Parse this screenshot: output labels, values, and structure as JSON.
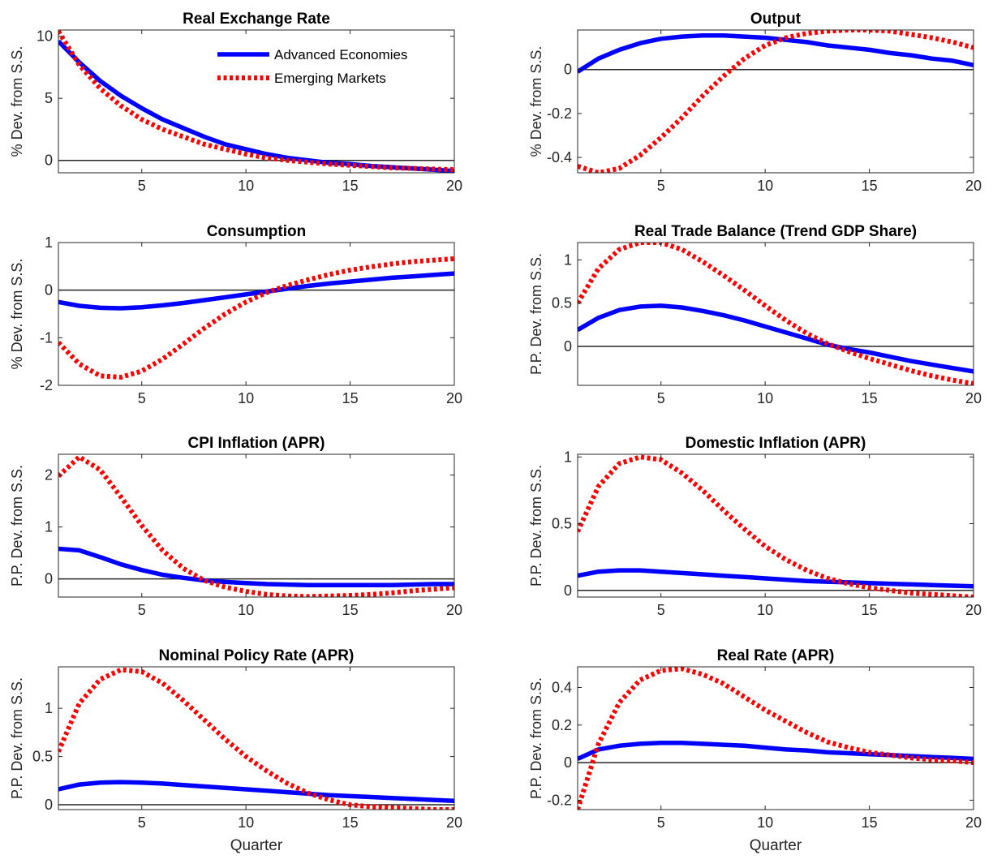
{
  "colors": {
    "advanced": "#0000ff",
    "emerging": "#ff0000",
    "zero_line": "#262626",
    "axes": "#262626"
  },
  "legend": {
    "placement": "top-right of first panel",
    "entries": [
      {
        "label": "Advanced Economies",
        "color": "#0000ff",
        "style": "solid"
      },
      {
        "label": "Emerging Markets",
        "color": "#ff0000",
        "style": "dotted"
      }
    ]
  },
  "chart_data": [
    {
      "type": "line",
      "title": "Real Exchange Rate",
      "ylabel": "% Dev. from S.S.",
      "xlabel": "",
      "xlim": [
        1,
        20
      ],
      "ylim": [
        -1,
        10.5
      ],
      "xticks": [
        5,
        10,
        15,
        20
      ],
      "yticks": [
        0,
        5,
        10
      ],
      "xtick_labels": [
        "5",
        "10",
        "15",
        "20"
      ],
      "ytick_labels": [
        "0",
        "5",
        "10"
      ],
      "grid": false,
      "zero_line": true,
      "x": [
        1,
        2,
        3,
        4,
        5,
        6,
        7,
        8,
        9,
        10,
        11,
        12,
        13,
        14,
        15,
        16,
        17,
        18,
        19,
        20
      ],
      "series": [
        {
          "name": "Advanced Economies",
          "values": [
            9.6,
            7.9,
            6.4,
            5.2,
            4.2,
            3.3,
            2.6,
            1.9,
            1.3,
            0.9,
            0.5,
            0.2,
            0.0,
            -0.2,
            -0.3,
            -0.45,
            -0.55,
            -0.65,
            -0.75,
            -0.85
          ]
        },
        {
          "name": "Emerging Markets",
          "values": [
            10.4,
            7.7,
            5.8,
            4.4,
            3.3,
            2.5,
            1.9,
            1.3,
            0.9,
            0.5,
            0.2,
            0.0,
            -0.15,
            -0.3,
            -0.4,
            -0.5,
            -0.6,
            -0.65,
            -0.7,
            -0.75
          ]
        }
      ]
    },
    {
      "type": "line",
      "title": "Output",
      "ylabel": "% Dev. from S.S.",
      "xlabel": "",
      "xlim": [
        1,
        20
      ],
      "ylim": [
        -0.47,
        0.18
      ],
      "xticks": [
        5,
        10,
        15,
        20
      ],
      "yticks": [
        -0.4,
        -0.2,
        0
      ],
      "xtick_labels": [
        "5",
        "10",
        "15",
        "20"
      ],
      "ytick_labels": [
        "-0.4",
        "-0.2",
        "0"
      ],
      "grid": false,
      "zero_line": true,
      "x": [
        1,
        2,
        3,
        4,
        5,
        6,
        7,
        8,
        9,
        10,
        11,
        12,
        13,
        14,
        15,
        16,
        17,
        18,
        19,
        20
      ],
      "series": [
        {
          "name": "Advanced Economies",
          "values": [
            -0.01,
            0.05,
            0.09,
            0.12,
            0.14,
            0.15,
            0.155,
            0.155,
            0.15,
            0.145,
            0.135,
            0.125,
            0.11,
            0.1,
            0.09,
            0.075,
            0.065,
            0.05,
            0.04,
            0.02
          ]
        },
        {
          "name": "Emerging Markets",
          "values": [
            -0.44,
            -0.47,
            -0.45,
            -0.39,
            -0.31,
            -0.22,
            -0.12,
            -0.03,
            0.05,
            0.11,
            0.145,
            0.165,
            0.175,
            0.18,
            0.18,
            0.175,
            0.16,
            0.145,
            0.125,
            0.1
          ]
        }
      ]
    },
    {
      "type": "line",
      "title": "Consumption",
      "ylabel": "% Dev. from S.S.",
      "xlabel": "",
      "xlim": [
        1,
        20
      ],
      "ylim": [
        -2,
        1
      ],
      "xticks": [
        5,
        10,
        15,
        20
      ],
      "yticks": [
        -2,
        -1,
        0,
        1
      ],
      "xtick_labels": [
        "5",
        "10",
        "15",
        "20"
      ],
      "ytick_labels": [
        "-2",
        "-1",
        "0",
        "1"
      ],
      "grid": false,
      "zero_line": true,
      "x": [
        1,
        2,
        3,
        4,
        5,
        6,
        7,
        8,
        9,
        10,
        11,
        12,
        13,
        14,
        15,
        16,
        17,
        18,
        19,
        20
      ],
      "series": [
        {
          "name": "Advanced Economies",
          "values": [
            -0.25,
            -0.33,
            -0.37,
            -0.38,
            -0.36,
            -0.32,
            -0.27,
            -0.21,
            -0.15,
            -0.09,
            -0.03,
            0.03,
            0.09,
            0.14,
            0.18,
            0.22,
            0.26,
            0.29,
            0.32,
            0.35
          ]
        },
        {
          "name": "Emerging Markets",
          "values": [
            -1.1,
            -1.55,
            -1.8,
            -1.83,
            -1.7,
            -1.45,
            -1.13,
            -0.8,
            -0.5,
            -0.25,
            -0.05,
            0.1,
            0.22,
            0.33,
            0.42,
            0.49,
            0.55,
            0.6,
            0.63,
            0.66
          ]
        }
      ]
    },
    {
      "type": "line",
      "title": "Real Trade Balance (Trend GDP Share)",
      "ylabel": "P.P. Dev. from S.S.",
      "xlabel": "",
      "xlim": [
        1,
        20
      ],
      "ylim": [
        -0.45,
        1.2
      ],
      "xticks": [
        5,
        10,
        15,
        20
      ],
      "yticks": [
        0,
        0.5,
        1
      ],
      "xtick_labels": [
        "5",
        "10",
        "15",
        "20"
      ],
      "ytick_labels": [
        "0",
        "0.5",
        "1"
      ],
      "grid": false,
      "zero_line": true,
      "x": [
        1,
        2,
        3,
        4,
        5,
        6,
        7,
        8,
        9,
        10,
        11,
        12,
        13,
        14,
        15,
        16,
        17,
        18,
        19,
        20
      ],
      "series": [
        {
          "name": "Advanced Economies",
          "values": [
            0.19,
            0.33,
            0.42,
            0.46,
            0.47,
            0.45,
            0.41,
            0.36,
            0.3,
            0.23,
            0.16,
            0.09,
            0.02,
            -0.03,
            -0.07,
            -0.12,
            -0.17,
            -0.21,
            -0.25,
            -0.29
          ]
        },
        {
          "name": "Emerging Markets",
          "values": [
            0.5,
            0.9,
            1.12,
            1.2,
            1.2,
            1.12,
            0.98,
            0.82,
            0.65,
            0.47,
            0.3,
            0.15,
            0.03,
            -0.06,
            -0.14,
            -0.21,
            -0.28,
            -0.34,
            -0.39,
            -0.43
          ]
        }
      ]
    },
    {
      "type": "line",
      "title": "CPI Inflation (APR)",
      "ylabel": "P.P. Dev. from S.S.",
      "xlabel": "",
      "xlim": [
        1,
        20
      ],
      "ylim": [
        -0.35,
        2.4
      ],
      "xticks": [
        5,
        10,
        15,
        20
      ],
      "yticks": [
        0,
        1,
        2
      ],
      "xtick_labels": [
        "5",
        "10",
        "15",
        "20"
      ],
      "ytick_labels": [
        "0",
        "1",
        "2"
      ],
      "grid": false,
      "zero_line": true,
      "x": [
        1,
        2,
        3,
        4,
        5,
        6,
        7,
        8,
        9,
        10,
        11,
        12,
        13,
        14,
        15,
        16,
        17,
        18,
        19,
        20
      ],
      "series": [
        {
          "name": "Advanced Economies",
          "values": [
            0.58,
            0.55,
            0.42,
            0.28,
            0.17,
            0.08,
            0.02,
            -0.03,
            -0.06,
            -0.08,
            -0.1,
            -0.11,
            -0.12,
            -0.12,
            -0.12,
            -0.12,
            -0.12,
            -0.11,
            -0.1,
            -0.1
          ]
        },
        {
          "name": "Emerging Markets",
          "values": [
            1.98,
            2.35,
            2.1,
            1.58,
            1.03,
            0.55,
            0.2,
            -0.03,
            -0.16,
            -0.24,
            -0.3,
            -0.33,
            -0.34,
            -0.33,
            -0.32,
            -0.3,
            -0.27,
            -0.23,
            -0.2,
            -0.17
          ]
        }
      ]
    },
    {
      "type": "line",
      "title": "Domestic Inflation (APR)",
      "ylabel": "P.P. Dev. from S.S.",
      "xlabel": "",
      "xlim": [
        1,
        20
      ],
      "ylim": [
        -0.05,
        1.02
      ],
      "xticks": [
        5,
        10,
        15,
        20
      ],
      "yticks": [
        0,
        0.5,
        1
      ],
      "xtick_labels": [
        "5",
        "10",
        "15",
        "20"
      ],
      "ytick_labels": [
        "0",
        "0.5",
        "1"
      ],
      "grid": false,
      "zero_line": true,
      "x": [
        1,
        2,
        3,
        4,
        5,
        6,
        7,
        8,
        9,
        10,
        11,
        12,
        13,
        14,
        15,
        16,
        17,
        18,
        19,
        20
      ],
      "series": [
        {
          "name": "Advanced Economies",
          "values": [
            0.11,
            0.14,
            0.15,
            0.15,
            0.14,
            0.13,
            0.12,
            0.11,
            0.1,
            0.09,
            0.08,
            0.07,
            0.065,
            0.06,
            0.055,
            0.05,
            0.045,
            0.04,
            0.035,
            0.03
          ]
        },
        {
          "name": "Emerging Markets",
          "values": [
            0.44,
            0.78,
            0.95,
            1.0,
            0.98,
            0.88,
            0.75,
            0.6,
            0.46,
            0.33,
            0.23,
            0.15,
            0.09,
            0.05,
            0.02,
            0.0,
            -0.02,
            -0.03,
            -0.04,
            -0.05
          ]
        }
      ]
    },
    {
      "type": "line",
      "title": "Nominal Policy Rate (APR)",
      "ylabel": "P.P. Dev. from S.S.",
      "xlabel": "Quarter",
      "xlim": [
        1,
        20
      ],
      "ylim": [
        -0.05,
        1.43
      ],
      "xticks": [
        5,
        10,
        15,
        20
      ],
      "yticks": [
        0,
        0.5,
        1
      ],
      "xtick_labels": [
        "5",
        "10",
        "15",
        "20"
      ],
      "ytick_labels": [
        "0",
        "0.5",
        "1"
      ],
      "grid": false,
      "zero_line": true,
      "x": [
        1,
        2,
        3,
        4,
        5,
        6,
        7,
        8,
        9,
        10,
        11,
        12,
        13,
        14,
        15,
        16,
        17,
        18,
        19,
        20
      ],
      "series": [
        {
          "name": "Advanced Economies",
          "values": [
            0.16,
            0.21,
            0.23,
            0.235,
            0.23,
            0.22,
            0.205,
            0.19,
            0.175,
            0.16,
            0.145,
            0.13,
            0.115,
            0.1,
            0.09,
            0.08,
            0.07,
            0.06,
            0.05,
            0.04
          ]
        },
        {
          "name": "Emerging Markets",
          "values": [
            0.55,
            1.05,
            1.3,
            1.4,
            1.38,
            1.26,
            1.08,
            0.88,
            0.68,
            0.5,
            0.35,
            0.22,
            0.12,
            0.05,
            0.0,
            -0.02,
            -0.03,
            -0.04,
            -0.05,
            -0.05
          ]
        }
      ]
    },
    {
      "type": "line",
      "title": "Real Rate (APR)",
      "ylabel": "P.P. Dev. from S.S.",
      "xlabel": "Quarter",
      "xlim": [
        1,
        20
      ],
      "ylim": [
        -0.25,
        0.51
      ],
      "xticks": [
        5,
        10,
        15,
        20
      ],
      "yticks": [
        -0.2,
        0,
        0.2,
        0.4
      ],
      "xtick_labels": [
        "5",
        "10",
        "15",
        "20"
      ],
      "ytick_labels": [
        "-0.2",
        "0",
        "0.2",
        "0.4"
      ],
      "grid": false,
      "zero_line": true,
      "x": [
        1,
        2,
        3,
        4,
        5,
        6,
        7,
        8,
        9,
        10,
        11,
        12,
        13,
        14,
        15,
        16,
        17,
        18,
        19,
        20
      ],
      "series": [
        {
          "name": "Advanced Economies",
          "values": [
            0.02,
            0.07,
            0.09,
            0.1,
            0.105,
            0.105,
            0.1,
            0.095,
            0.09,
            0.08,
            0.07,
            0.065,
            0.055,
            0.05,
            0.045,
            0.04,
            0.035,
            0.03,
            0.025,
            0.02
          ]
        },
        {
          "name": "Emerging Markets",
          "values": [
            -0.25,
            0.1,
            0.32,
            0.44,
            0.49,
            0.5,
            0.47,
            0.42,
            0.35,
            0.28,
            0.22,
            0.16,
            0.11,
            0.08,
            0.055,
            0.04,
            0.025,
            0.015,
            0.01,
            0.0
          ]
        }
      ]
    }
  ]
}
